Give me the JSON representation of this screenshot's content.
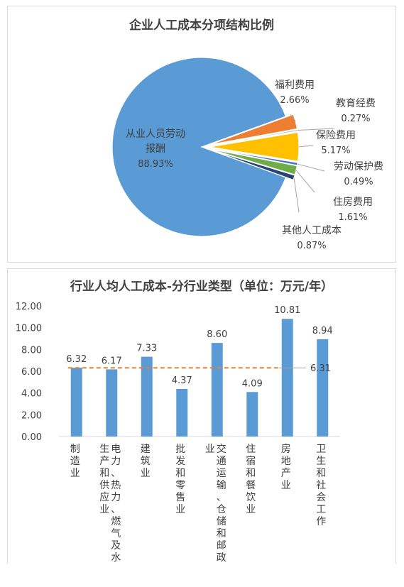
{
  "chart_data": [
    {
      "type": "pie",
      "title": "企业人工成本分项结构比例",
      "slices": [
        {
          "label": "从业人员劳动报酬",
          "label_lines": [
            "从业人员劳动",
            "报酬"
          ],
          "percent_text": "88.93%",
          "value": 88.93,
          "color": "#5b9bd5"
        },
        {
          "label": "福利费用",
          "label_lines": [
            "福利费用"
          ],
          "percent_text": "2.66%",
          "value": 2.66,
          "color": "#ed7d31"
        },
        {
          "label": "教育经费",
          "label_lines": [
            "教育经费"
          ],
          "percent_text": "0.27%",
          "value": 0.27,
          "color": "#a5a5a5"
        },
        {
          "label": "保险费用",
          "label_lines": [
            "保险费用"
          ],
          "percent_text": "5.17%",
          "value": 5.17,
          "color": "#ffc000"
        },
        {
          "label": "劳动保护费",
          "label_lines": [
            "劳动保护费"
          ],
          "percent_text": "0.49%",
          "value": 0.49,
          "color": "#4472c4"
        },
        {
          "label": "住房费用",
          "label_lines": [
            "住房费用"
          ],
          "percent_text": "1.61%",
          "value": 1.61,
          "color": "#70ad47"
        },
        {
          "label": "其他人工成本",
          "label_lines": [
            "其他人工成本"
          ],
          "percent_text": "0.87%",
          "value": 0.87,
          "color": "#264478"
        }
      ]
    },
    {
      "type": "bar",
      "title": "行业人均人工成本-分行业类型（单位：万元/年）",
      "categories": [
        "制造业",
        "电力、热力、燃气及水生产和供应业",
        "建筑业",
        "批发和零售业",
        "交通运输、仓储和邮政业",
        "住宿和餐饮业",
        "房地产业",
        "卫生和社会工作"
      ],
      "category_columns": [
        [
          "制造业"
        ],
        [
          "电力、热力、燃气及水",
          "生产和供应业"
        ],
        [
          "建筑业"
        ],
        [
          "批发和零售业"
        ],
        [
          "交通运输、仓储和邮政",
          "业"
        ],
        [
          "住宿和餐饮业"
        ],
        [
          "房地产业"
        ],
        [
          "卫生和社会工作"
        ]
      ],
      "values": [
        6.32,
        6.17,
        7.33,
        4.37,
        8.6,
        4.09,
        10.81,
        8.94
      ],
      "value_labels": [
        "6.32",
        "6.17",
        "7.33",
        "4.37",
        "8.60",
        "4.09",
        "10.81",
        "8.94"
      ],
      "average_line": {
        "value": 6.31,
        "label": "6.31",
        "color": "#ed7d31"
      },
      "bar_color": "#5b9bd5",
      "ylim": [
        0,
        12
      ],
      "yticks": [
        "0.00",
        "2.00",
        "4.00",
        "6.00",
        "8.00",
        "10.00",
        "12.00"
      ],
      "grid": false
    }
  ]
}
